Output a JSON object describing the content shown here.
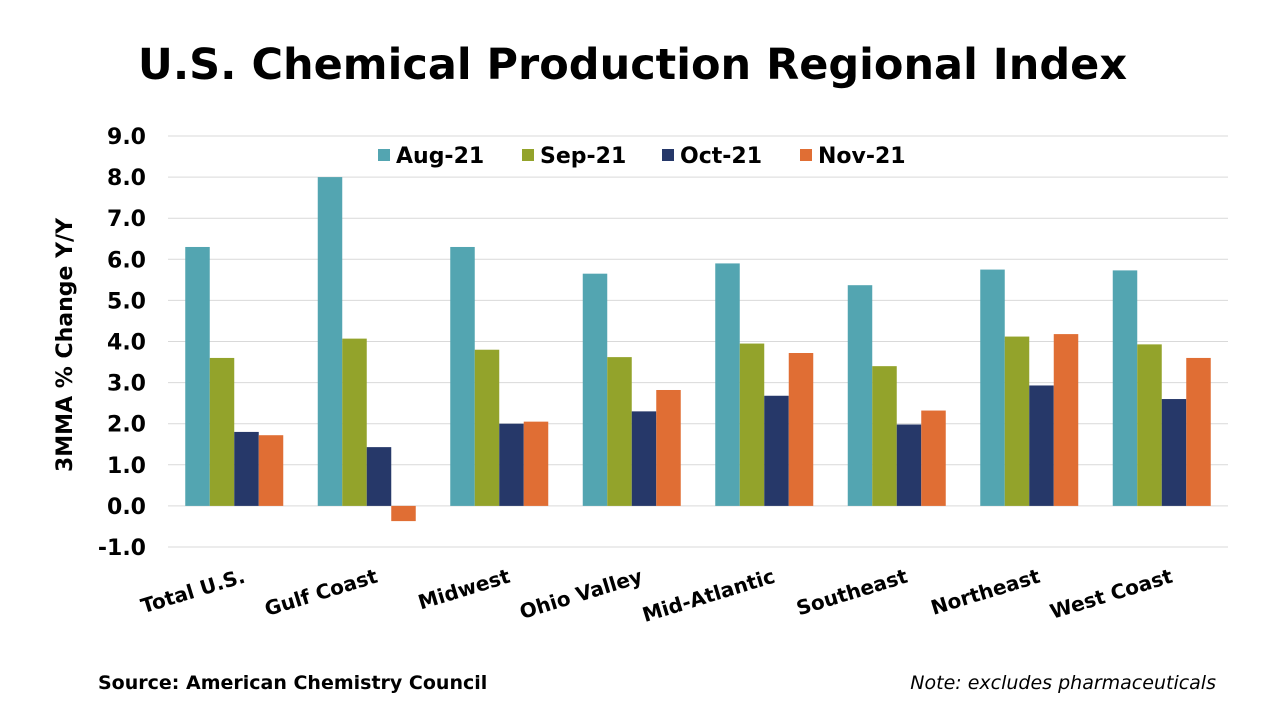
{
  "chart_data": {
    "type": "bar",
    "title": "U.S. Chemical Production Regional Index",
    "ylabel": "3MMA % Change Y/Y",
    "xlabel": "",
    "ylim": [
      -1.0,
      9.0
    ],
    "yticks": [
      "9.0",
      "8.0",
      "7.0",
      "6.0",
      "5.0",
      "4.0",
      "3.0",
      "2.0",
      "1.0",
      "0.0",
      "-1.0"
    ],
    "ytick_values": [
      9,
      8,
      7,
      6,
      5,
      4,
      3,
      2,
      1,
      0,
      -1
    ],
    "categories": [
      "Total U.S.",
      "Gulf Coast",
      "Midwest",
      "Ohio Valley",
      "Mid-Atlantic",
      "Southeast",
      "Northeast",
      "West Coast"
    ],
    "series": [
      {
        "name": "Aug-21",
        "color": "#53A5B1",
        "values": [
          6.3,
          8.0,
          6.3,
          5.65,
          5.9,
          5.37,
          5.75,
          5.73
        ]
      },
      {
        "name": "Sep-21",
        "color": "#93A32B",
        "values": [
          3.6,
          4.07,
          3.8,
          3.62,
          3.95,
          3.4,
          4.12,
          3.93
        ]
      },
      {
        "name": "Oct-21",
        "color": "#263869",
        "values": [
          1.8,
          1.43,
          2.0,
          2.3,
          2.68,
          1.98,
          2.93,
          2.6
        ]
      },
      {
        "name": "Nov-21",
        "color": "#E06E34",
        "values": [
          1.72,
          -0.37,
          2.05,
          2.82,
          3.72,
          2.32,
          4.18,
          3.6
        ]
      }
    ],
    "legend_position": "top"
  },
  "footer": {
    "source": "Source: American Chemistry Council",
    "note": "Note: excludes pharmaceuticals"
  }
}
